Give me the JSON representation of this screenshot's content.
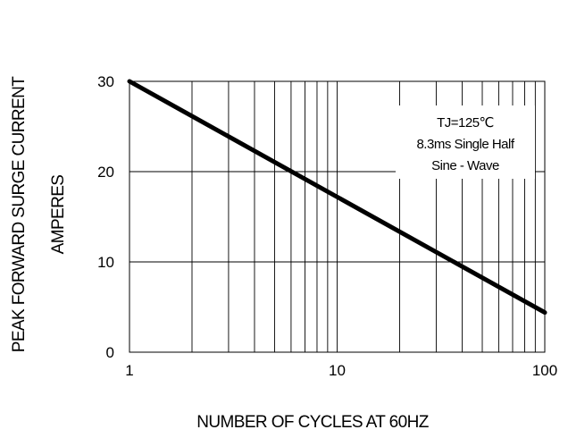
{
  "chart_data": {
    "type": "line",
    "xscale": "log",
    "xlim": [
      1,
      100
    ],
    "ylim": [
      0,
      30
    ],
    "x_ticks": [
      1,
      10,
      100
    ],
    "x_tick_labels": [
      "1",
      "10",
      "100"
    ],
    "y_ticks": [
      0,
      10,
      20,
      30
    ],
    "y_tick_labels": [
      "0",
      "10",
      "20",
      "30"
    ],
    "grid": true,
    "xlabel": "NUMBER OF CYCLES AT 60HZ",
    "ylabel": [
      "PEAK FORWARD SURGE CURRENT",
      "AMPERES"
    ],
    "series": [
      {
        "x": [
          1,
          100
        ],
        "y": [
          30,
          4.4
        ],
        "color": "#000000"
      }
    ],
    "annotation": [
      "TJ=125℃",
      "8.3ms Single Half",
      "Sine - Wave"
    ]
  }
}
